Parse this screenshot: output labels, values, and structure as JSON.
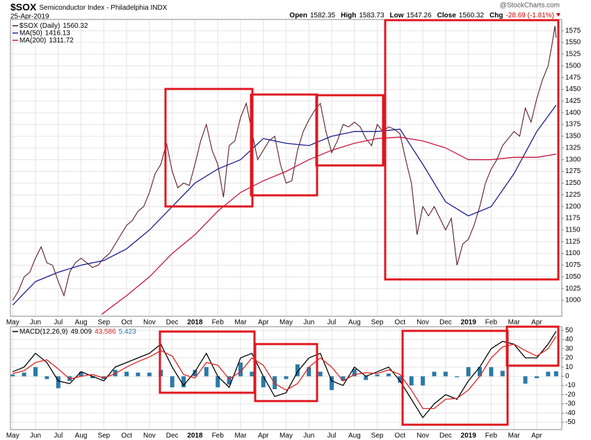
{
  "header": {
    "symbol": "$SOX",
    "title": "Semiconductor Index - Philadelphia INDX",
    "date": "25-Apr-2019",
    "brand": "@StockCharts.com",
    "ohlc": [
      {
        "label": "Open",
        "value": "1582.35"
      },
      {
        "label": "High",
        "value": "1583.73"
      },
      {
        "label": "Low",
        "value": "1547.26"
      },
      {
        "label": "Close",
        "value": "1560.32"
      },
      {
        "label": "Chg",
        "value": "-28.69 (-1.81%)"
      }
    ]
  },
  "chart_data": [
    {
      "type": "line",
      "grid": true,
      "xlim": [
        -0.1,
        24.1
      ],
      "ylim": [
        966,
        1599
      ],
      "yticks": [
        1000,
        1025,
        1050,
        1075,
        1100,
        1125,
        1150,
        1175,
        1200,
        1225,
        1250,
        1275,
        1300,
        1325,
        1350,
        1375,
        1400,
        1425,
        1450,
        1475,
        1500,
        1525,
        1550,
        1575
      ],
      "xticks": [
        {
          "value": 0,
          "label": "May"
        },
        {
          "value": 1,
          "label": "Jun"
        },
        {
          "value": 2,
          "label": "Jul"
        },
        {
          "value": 3,
          "label": "Aug"
        },
        {
          "value": 4,
          "label": "Sep"
        },
        {
          "value": 5,
          "label": "Oct"
        },
        {
          "value": 6,
          "label": "Nov"
        },
        {
          "value": 7,
          "label": "Dec"
        },
        {
          "value": 8,
          "label": "2018"
        },
        {
          "value": 9,
          "label": "Feb"
        },
        {
          "value": 10,
          "label": "Mar"
        },
        {
          "value": 11,
          "label": "Apr"
        },
        {
          "value": 12,
          "label": "May"
        },
        {
          "value": 13,
          "label": "Jun"
        },
        {
          "value": 14,
          "label": "Jul"
        },
        {
          "value": 15,
          "label": "Aug"
        },
        {
          "value": 16,
          "label": "Sep"
        },
        {
          "value": 17,
          "label": "Oct"
        },
        {
          "value": 18,
          "label": "Nov"
        },
        {
          "value": 19,
          "label": "Dec"
        },
        {
          "value": 20,
          "label": "2019"
        },
        {
          "value": 21,
          "label": "Feb"
        },
        {
          "value": 22,
          "label": "Mar"
        },
        {
          "value": 23,
          "label": "Apr"
        }
      ],
      "series": [
        {
          "name": "$SOX (Daily)",
          "legend_value": "1560.32",
          "color": "#5a1a24",
          "x": [
            0,
            0.25,
            0.5,
            0.75,
            1,
            1.25,
            1.5,
            1.75,
            2,
            2.25,
            2.5,
            2.75,
            3,
            3.25,
            3.5,
            3.75,
            4,
            4.25,
            4.5,
            4.75,
            5,
            5.25,
            5.5,
            5.75,
            6,
            6.25,
            6.5,
            6.75,
            7,
            7.25,
            7.5,
            7.75,
            8,
            8.25,
            8.5,
            8.75,
            9,
            9.25,
            9.5,
            9.75,
            10,
            10.25,
            10.5,
            10.75,
            11,
            11.25,
            11.5,
            11.75,
            12,
            12.25,
            12.5,
            12.75,
            13,
            13.25,
            13.5,
            13.75,
            14,
            14.25,
            14.5,
            14.75,
            15,
            15.25,
            15.5,
            15.75,
            16,
            16.25,
            16.5,
            16.75,
            17,
            17.25,
            17.5,
            17.75,
            18,
            18.25,
            18.5,
            18.75,
            19,
            19.25,
            19.5,
            19.75,
            20,
            20.25,
            20.5,
            20.75,
            21,
            21.25,
            21.5,
            21.75,
            22,
            22.25,
            22.5,
            22.75,
            23,
            23.25,
            23.5,
            23.65,
            23.8,
            23.85
          ],
          "values": [
            1000,
            1020,
            1050,
            1060,
            1090,
            1114,
            1080,
            1075,
            1040,
            1010,
            1060,
            1080,
            1090,
            1080,
            1070,
            1075,
            1090,
            1100,
            1120,
            1140,
            1160,
            1170,
            1190,
            1200,
            1230,
            1270,
            1290,
            1335,
            1275,
            1240,
            1250,
            1245,
            1290,
            1340,
            1375,
            1320,
            1290,
            1220,
            1330,
            1340,
            1390,
            1420,
            1360,
            1300,
            1320,
            1340,
            1350,
            1290,
            1250,
            1255,
            1320,
            1360,
            1385,
            1405,
            1420,
            1360,
            1315,
            1340,
            1375,
            1370,
            1380,
            1370,
            1345,
            1330,
            1375,
            1360,
            1370,
            1365,
            1355,
            1300,
            1250,
            1140,
            1200,
            1180,
            1200,
            1175,
            1150,
            1175,
            1075,
            1120,
            1130,
            1160,
            1200,
            1250,
            1280,
            1300,
            1330,
            1345,
            1360,
            1350,
            1410,
            1380,
            1430,
            1470,
            1500,
            1540,
            1585,
            1560.32
          ]
        },
        {
          "name": "MA(50)",
          "legend_value": "1416.13",
          "color": "#1a1a8c",
          "x": [
            0,
            1,
            2,
            3,
            4,
            5,
            6,
            7,
            8,
            9,
            10,
            11,
            12,
            13,
            14,
            15,
            16,
            17,
            18,
            19,
            20,
            21,
            22,
            23,
            23.85
          ],
          "values": [
            990,
            1040,
            1060,
            1075,
            1085,
            1110,
            1150,
            1200,
            1250,
            1280,
            1300,
            1345,
            1335,
            1330,
            1350,
            1360,
            1360,
            1365,
            1290,
            1210,
            1180,
            1200,
            1270,
            1360,
            1416.13
          ]
        },
        {
          "name": "MA(200)",
          "legend_value": "1311.72",
          "color": "#c8143c",
          "x": [
            3.9,
            5,
            6,
            7,
            8,
            9,
            10,
            11,
            12,
            13,
            14,
            15,
            16,
            17,
            18,
            19,
            20,
            21,
            22,
            23,
            23.85
          ],
          "values": [
            970,
            1010,
            1050,
            1100,
            1140,
            1190,
            1230,
            1255,
            1275,
            1300,
            1320,
            1335,
            1345,
            1348,
            1340,
            1325,
            1300,
            1300,
            1305,
            1305,
            1311.72
          ]
        }
      ]
    },
    {
      "type": "line",
      "label": "MACD(12,26,9)",
      "grid": true,
      "xlim": [
        -0.1,
        24.1
      ],
      "ylim": [
        -58,
        54
      ],
      "yticks": [
        -50,
        -40,
        -30,
        -20,
        -10,
        0,
        10,
        20,
        30,
        40,
        50
      ],
      "xticks": [
        {
          "value": 0,
          "label": "May"
        },
        {
          "value": 1,
          "label": "Jun"
        },
        {
          "value": 2,
          "label": "Jul"
        },
        {
          "value": 3,
          "label": "Aug"
        },
        {
          "value": 4,
          "label": "Sep"
        },
        {
          "value": 5,
          "label": "Oct"
        },
        {
          "value": 6,
          "label": "Nov"
        },
        {
          "value": 7,
          "label": "Dec"
        },
        {
          "value": 8,
          "label": "2018"
        },
        {
          "value": 9,
          "label": "Feb"
        },
        {
          "value": 10,
          "label": "Mar"
        },
        {
          "value": 11,
          "label": "Apr"
        },
        {
          "value": 12,
          "label": "May"
        },
        {
          "value": 13,
          "label": "Jun"
        },
        {
          "value": 14,
          "label": "Jul"
        },
        {
          "value": 15,
          "label": "Aug"
        },
        {
          "value": 16,
          "label": "Sep"
        },
        {
          "value": 17,
          "label": "Oct"
        },
        {
          "value": 18,
          "label": "Nov"
        },
        {
          "value": 19,
          "label": "Dec"
        },
        {
          "value": 20,
          "label": "2019"
        },
        {
          "value": 21,
          "label": "Feb"
        },
        {
          "value": 22,
          "label": "Mar"
        },
        {
          "value": 23,
          "label": "Apr"
        }
      ],
      "series": [
        {
          "type": "bar",
          "legend_value": "5.423",
          "color": "#2a7aa8",
          "x": [
            0,
            0.5,
            1,
            1.5,
            2,
            2.5,
            3,
            3.5,
            4,
            4.5,
            5,
            5.5,
            6,
            6.5,
            7,
            7.5,
            8,
            8.5,
            9,
            9.5,
            10,
            10.5,
            11,
            11.5,
            12,
            12.5,
            13,
            13.5,
            14,
            14.5,
            15,
            15.5,
            16,
            16.5,
            17,
            17.5,
            18,
            18.5,
            19,
            19.5,
            20,
            20.5,
            21,
            21.5,
            22,
            22.5,
            23,
            23.5,
            23.85
          ],
          "values": [
            2,
            4,
            10,
            -3,
            -13,
            -5,
            5,
            -2,
            -3,
            7,
            5,
            4,
            4,
            7,
            -12,
            -12,
            7,
            10,
            -12,
            -9,
            15,
            5,
            -12,
            -14,
            -3,
            13,
            10,
            5,
            -15,
            -5,
            8,
            -4,
            2,
            3,
            -7,
            -10,
            -10,
            5,
            5,
            -1,
            10,
            10,
            10,
            6,
            0,
            -8,
            -2,
            5,
            5.423
          ]
        },
        {
          "legend_value": "49.009",
          "color": "#000000",
          "x": [
            0,
            0.5,
            1,
            1.5,
            2,
            2.5,
            3,
            3.5,
            4,
            4.5,
            5,
            5.5,
            6,
            6.5,
            7,
            7.5,
            8,
            8.5,
            9,
            9.5,
            10,
            10.5,
            11,
            11.5,
            12,
            12.5,
            13,
            13.5,
            14,
            14.5,
            15,
            15.5,
            16,
            16.5,
            17,
            17.5,
            18,
            18.5,
            19,
            19.5,
            20,
            20.5,
            21,
            21.5,
            22,
            22.5,
            23,
            23.5,
            23.85
          ],
          "values": [
            5,
            10,
            25,
            15,
            -5,
            -8,
            5,
            0,
            -5,
            10,
            15,
            20,
            25,
            35,
            10,
            -10,
            5,
            25,
            0,
            -12,
            20,
            25,
            0,
            -22,
            -18,
            5,
            20,
            25,
            -5,
            -10,
            10,
            0,
            5,
            10,
            -5,
            -25,
            -45,
            -30,
            -20,
            -25,
            -5,
            10,
            30,
            38,
            35,
            20,
            20,
            35,
            49.009
          ]
        },
        {
          "legend_value": "43.586",
          "color": "#e02020",
          "x": [
            0,
            0.5,
            1,
            1.5,
            2,
            2.5,
            3,
            3.5,
            4,
            4.5,
            5,
            5.5,
            6,
            6.5,
            7,
            7.5,
            8,
            8.5,
            9,
            9.5,
            10,
            10.5,
            11,
            11.5,
            12,
            12.5,
            13,
            13.5,
            14,
            14.5,
            15,
            15.5,
            16,
            16.5,
            17,
            17.5,
            18,
            18.5,
            19,
            19.5,
            20,
            20.5,
            21,
            21.5,
            22,
            22.5,
            23,
            23.5,
            23.85
          ],
          "values": [
            3,
            6,
            15,
            18,
            8,
            -3,
            0,
            2,
            -2,
            3,
            10,
            16,
            21,
            28,
            22,
            2,
            -2,
            15,
            12,
            -3,
            5,
            20,
            12,
            -8,
            -15,
            -8,
            10,
            20,
            10,
            -5,
            2,
            4,
            3,
            7,
            2,
            -15,
            -35,
            -35,
            -25,
            -24,
            -15,
            0,
            20,
            32,
            35,
            28,
            22,
            30,
            43.586
          ]
        }
      ]
    }
  ]
}
